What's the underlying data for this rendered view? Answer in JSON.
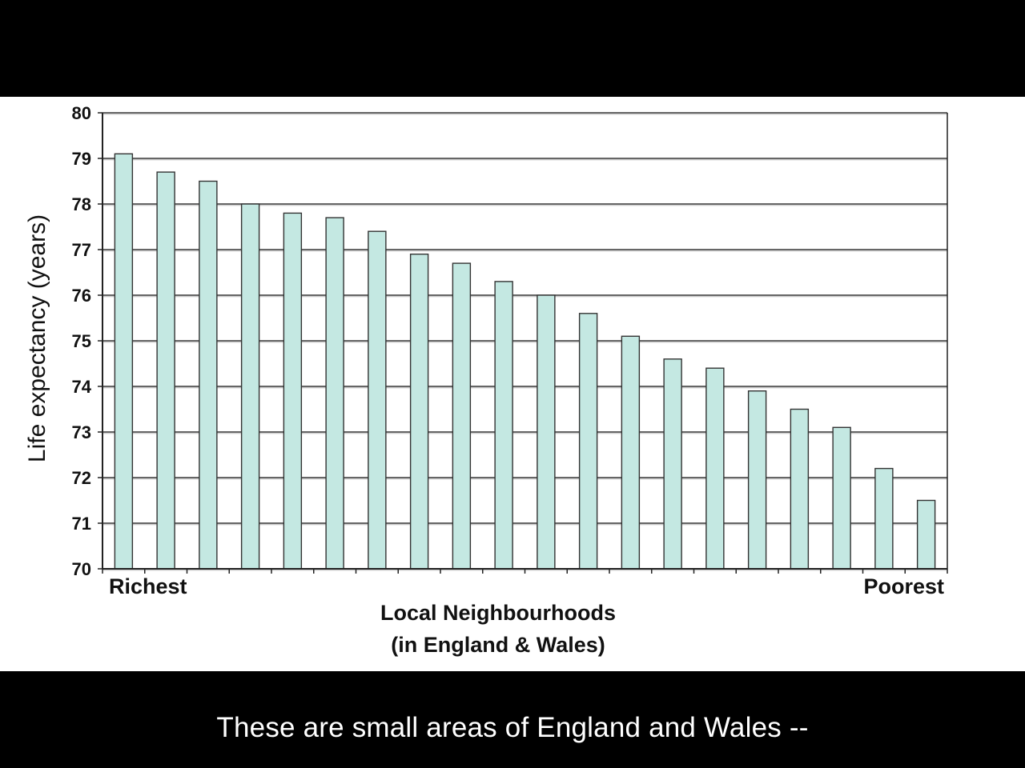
{
  "caption": "These are small areas of England and Wales --",
  "chart_data": {
    "type": "bar",
    "ylabel": "Life expectancy (years)",
    "xlabel_line1": "Local Neighbourhoods",
    "xlabel_line2": "(in England & Wales)",
    "x_end_labels": {
      "left": "Richest",
      "right": "Poorest"
    },
    "ylim": [
      70,
      80
    ],
    "yticks": [
      70,
      71,
      72,
      73,
      74,
      75,
      76,
      77,
      78,
      79,
      80
    ],
    "grid": true,
    "values": [
      79.1,
      78.7,
      78.5,
      78.0,
      77.8,
      77.7,
      77.4,
      76.9,
      76.7,
      76.3,
      76.0,
      75.6,
      75.1,
      74.6,
      74.4,
      73.9,
      73.5,
      73.1,
      72.2,
      71.5
    ],
    "bar_color": "#c4e8e2"
  }
}
